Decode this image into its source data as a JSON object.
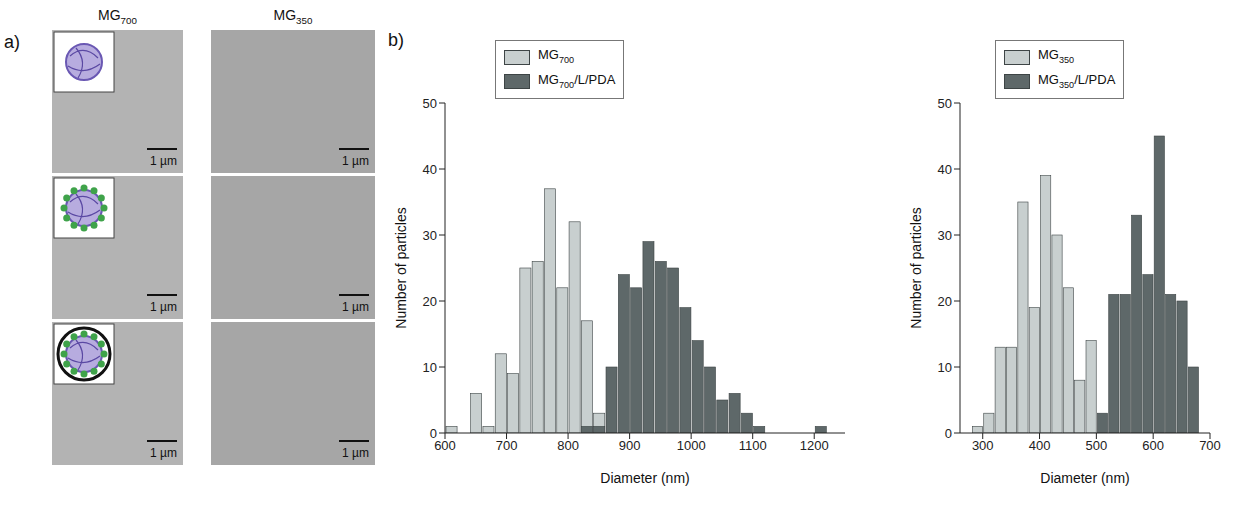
{
  "figure": {
    "panel_a": {
      "label": "a)",
      "columns": [
        "MG700",
        "MG350"
      ],
      "scale_bar_labels": [
        [
          "1 µm",
          "1 µm"
        ],
        [
          "1 µm",
          "1 µm"
        ],
        [
          "1 µm",
          "1 µm"
        ]
      ]
    },
    "panel_b": {
      "label": "b)"
    }
  },
  "chart_data": [
    {
      "type": "histogram",
      "bins": [
        600,
        620,
        640,
        660,
        680,
        700,
        720,
        740,
        760,
        780,
        800,
        820,
        840,
        860,
        880,
        900,
        920,
        940,
        960,
        980,
        1000,
        1020,
        1040,
        1060,
        1080,
        1100,
        1120,
        1140,
        1160,
        1180,
        1200,
        1220
      ],
      "series": [
        {
          "name": "MG700",
          "color": "#c8cfcf",
          "values": [
            1,
            0,
            6,
            1,
            12,
            9,
            25,
            26,
            37,
            22,
            32,
            17,
            3,
            0,
            0,
            0,
            0,
            0,
            0,
            0,
            0,
            0,
            0,
            0,
            0,
            0,
            0,
            0,
            0,
            0,
            0
          ]
        },
        {
          "name": "MG700/L/PDA",
          "color": "#5e6869",
          "values": [
            0,
            0,
            0,
            0,
            0,
            0,
            0,
            0,
            0,
            0,
            0,
            1,
            1,
            10,
            24,
            22,
            29,
            26,
            25,
            19,
            14,
            10,
            5,
            6,
            3,
            1,
            0,
            0,
            0,
            0,
            1
          ]
        }
      ],
      "x_label": "Diameter (nm)",
      "y_label": "Number of particles",
      "xlim": [
        600,
        1250
      ],
      "xticks": [
        600,
        700,
        800,
        900,
        1000,
        1100,
        1200
      ],
      "ylim": [
        0,
        50
      ],
      "yticks": [
        0,
        10,
        20,
        30,
        40,
        50
      ],
      "legend": "top"
    },
    {
      "type": "histogram",
      "bins": [
        280,
        300,
        320,
        340,
        360,
        380,
        400,
        420,
        440,
        460,
        480,
        500,
        520,
        540,
        560,
        580,
        600,
        620,
        640,
        660,
        680
      ],
      "series": [
        {
          "name": "MG350",
          "color": "#c8cfcf",
          "values": [
            1,
            3,
            13,
            13,
            35,
            19,
            39,
            30,
            22,
            8,
            14,
            0,
            0,
            0,
            0,
            0,
            0,
            0,
            0,
            0
          ]
        },
        {
          "name": "MG350/L/PDA",
          "color": "#5e6869",
          "values": [
            0,
            0,
            0,
            0,
            0,
            0,
            0,
            0,
            0,
            0,
            0,
            3,
            21,
            21,
            33,
            24,
            45,
            21,
            20,
            10
          ]
        }
      ],
      "x_label": "Diameter (nm)",
      "y_label": "Number of particles",
      "xlim": [
        260,
        700
      ],
      "xticks": [
        300,
        400,
        500,
        600,
        700
      ],
      "ylim": [
        0,
        50
      ],
      "yticks": [
        0,
        10,
        20,
        30,
        40,
        50
      ],
      "legend": "top"
    }
  ]
}
